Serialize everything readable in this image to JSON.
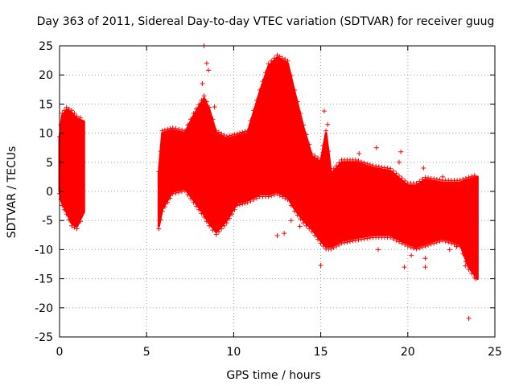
{
  "chart_data": {
    "type": "scatter",
    "title": "Day 363 of 2011, Sidereal Day-to-day VTEC variation (SDTVAR) for receiver guug",
    "xlabel": "GPS time / hours",
    "ylabel": "SDTVAR / TECUs",
    "xlim": [
      0,
      25
    ],
    "ylim": [
      -25,
      25
    ],
    "xticks": [
      0,
      5,
      10,
      15,
      20,
      25
    ],
    "yticks": [
      -25,
      -20,
      -15,
      -10,
      -5,
      0,
      5,
      10,
      15,
      20,
      25
    ],
    "xtick_labels": [
      "0",
      "5",
      "10",
      "15",
      "20",
      "25"
    ],
    "ytick_labels": [
      "-25",
      "-20",
      "-15",
      "-10",
      "-5",
      "0",
      "5",
      "10",
      "15",
      "20",
      "25"
    ],
    "grid": true,
    "marker": "+",
    "color": "#ff0000",
    "series": [
      {
        "name": "SDTVAR",
        "envelope": [
          {
            "x": 0.0,
            "upper": 9.0,
            "lower": 0.0
          },
          {
            "x": 0.15,
            "upper": 13.0,
            "lower": -2.0
          },
          {
            "x": 0.4,
            "upper": 14.0,
            "lower": -3.5
          },
          {
            "x": 0.7,
            "upper": 13.5,
            "lower": -5.5
          },
          {
            "x": 1.0,
            "upper": 12.5,
            "lower": -6.0
          },
          {
            "x": 1.4,
            "upper": 12.0,
            "lower": -3.5
          },
          {
            "gap": true
          },
          {
            "x": 5.7,
            "upper": 3.0,
            "lower": -6.0
          },
          {
            "x": 5.9,
            "upper": 10.0,
            "lower": -3.0
          },
          {
            "x": 6.5,
            "upper": 10.5,
            "lower": 0.0
          },
          {
            "x": 7.2,
            "upper": 10.0,
            "lower": 0.5
          },
          {
            "x": 7.7,
            "upper": 13.0,
            "lower": -1.5
          },
          {
            "x": 8.3,
            "upper": 16.0,
            "lower": -4.0
          },
          {
            "x": 8.6,
            "upper": 14.0,
            "lower": -5.5
          },
          {
            "x": 9.0,
            "upper": 10.0,
            "lower": -7.0
          },
          {
            "x": 9.6,
            "upper": 9.0,
            "lower": -5.0
          },
          {
            "x": 10.2,
            "upper": 9.5,
            "lower": -2.0
          },
          {
            "x": 10.8,
            "upper": 10.0,
            "lower": -1.5
          },
          {
            "x": 11.5,
            "upper": 17.0,
            "lower": -0.5
          },
          {
            "x": 12.0,
            "upper": 21.5,
            "lower": -0.5
          },
          {
            "x": 12.5,
            "upper": 23.0,
            "lower": 0.0
          },
          {
            "x": 13.1,
            "upper": 22.0,
            "lower": -1.0
          },
          {
            "x": 13.5,
            "upper": 17.0,
            "lower": -3.0
          },
          {
            "x": 14.0,
            "upper": 11.0,
            "lower": -5.0
          },
          {
            "x": 14.5,
            "upper": 6.0,
            "lower": -6.5
          },
          {
            "x": 15.0,
            "upper": 5.0,
            "lower": -8.5
          },
          {
            "x": 15.3,
            "upper": 10.0,
            "lower": -9.5
          },
          {
            "x": 15.6,
            "upper": 3.0,
            "lower": -9.5
          },
          {
            "x": 16.2,
            "upper": 5.0,
            "lower": -8.5
          },
          {
            "x": 17.0,
            "upper": 5.0,
            "lower": -8.0
          },
          {
            "x": 18.0,
            "upper": 4.0,
            "lower": -7.5
          },
          {
            "x": 19.0,
            "upper": 3.5,
            "lower": -7.5
          },
          {
            "x": 20.0,
            "upper": 1.0,
            "lower": -9.0
          },
          {
            "x": 20.5,
            "upper": 1.0,
            "lower": -9.5
          },
          {
            "x": 21.0,
            "upper": 2.0,
            "lower": -9.0
          },
          {
            "x": 22.0,
            "upper": 1.5,
            "lower": -8.0
          },
          {
            "x": 23.0,
            "upper": 1.5,
            "lower": -9.0
          },
          {
            "x": 23.5,
            "upper": 2.0,
            "lower": -13.0
          },
          {
            "x": 24.0,
            "upper": 2.5,
            "lower": -15.0
          }
        ],
        "outliers": [
          {
            "x": 8.3,
            "y": 25.0
          },
          {
            "x": 8.45,
            "y": 22.0
          },
          {
            "x": 8.55,
            "y": 20.8
          },
          {
            "x": 8.2,
            "y": 18.5
          },
          {
            "x": 8.9,
            "y": 14.5
          },
          {
            "x": 12.5,
            "y": -7.6
          },
          {
            "x": 12.9,
            "y": -7.2
          },
          {
            "x": 13.3,
            "y": -5.0
          },
          {
            "x": 13.8,
            "y": -6.0
          },
          {
            "x": 15.0,
            "y": -12.7
          },
          {
            "x": 15.2,
            "y": 13.8
          },
          {
            "x": 15.4,
            "y": 11.5
          },
          {
            "x": 17.2,
            "y": 6.5
          },
          {
            "x": 18.2,
            "y": 7.5
          },
          {
            "x": 18.3,
            "y": -10.0
          },
          {
            "x": 19.5,
            "y": 5.0
          },
          {
            "x": 19.6,
            "y": 6.8
          },
          {
            "x": 19.7,
            "y": -8.5
          },
          {
            "x": 19.8,
            "y": -13.0
          },
          {
            "x": 20.2,
            "y": -11.0
          },
          {
            "x": 20.4,
            "y": -9.5
          },
          {
            "x": 20.9,
            "y": 4.0
          },
          {
            "x": 21.0,
            "y": -11.5
          },
          {
            "x": 21.0,
            "y": -13.0
          },
          {
            "x": 22.0,
            "y": 2.5
          },
          {
            "x": 22.4,
            "y": -10.0
          },
          {
            "x": 22.8,
            "y": -9.5
          },
          {
            "x": 23.3,
            "y": -12.8
          },
          {
            "x": 23.5,
            "y": -21.8
          },
          {
            "x": 23.6,
            "y": -12.5
          },
          {
            "x": 23.9,
            "y": -15.0
          }
        ]
      }
    ]
  }
}
